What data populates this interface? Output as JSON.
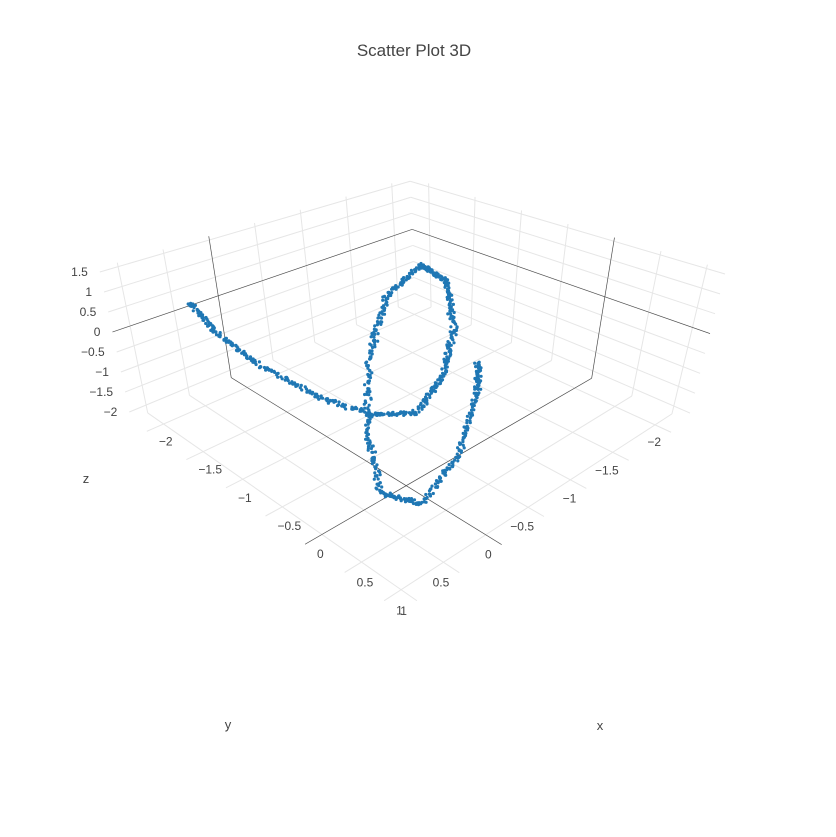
{
  "chart_data": {
    "type": "scatter3d",
    "title": "Scatter Plot 3D",
    "marker_color": "#1f77b4",
    "axes": {
      "x": {
        "label": "x",
        "range": [
          -2.2,
          1.2
        ],
        "ticks": [
          -2,
          -1.5,
          -1,
          -0.5,
          0,
          0.5,
          1
        ],
        "tick_labels": [
          "−2",
          "−1.5",
          "−1",
          "−0.5",
          "0",
          "0.5",
          "1"
        ]
      },
      "y": {
        "label": "y",
        "range": [
          -2.2,
          1.2
        ],
        "ticks": [
          -2,
          -1.5,
          -1,
          -0.5,
          0,
          0.5,
          1
        ],
        "tick_labels": [
          "−2",
          "−1.5",
          "−1",
          "−0.5",
          "0",
          "0.5",
          "1"
        ]
      },
      "z": {
        "label": "z",
        "range": [
          -2.2,
          1.6
        ],
        "ticks": [
          -2,
          -1.5,
          -1,
          -0.5,
          0,
          0.5,
          1,
          1.5
        ],
        "tick_labels": [
          "−2",
          "−1.5",
          "−1",
          "−0.5",
          "0",
          "0.5",
          "1",
          "1.5"
        ]
      }
    },
    "grid": true,
    "camera": "isometric, looking from positive x and y toward origin",
    "point_count": 1000,
    "series": [
      {
        "points_sample": [
          [
            -1.5,
            0.9,
            1.45
          ],
          [
            -1.2,
            0.95,
            1.2
          ],
          [
            -0.8,
            0.9,
            0.9
          ],
          [
            -0.3,
            0.7,
            0.5
          ],
          [
            0.0,
            0.4,
            0.1
          ],
          [
            0.1,
            0.0,
            -0.2
          ],
          [
            -0.2,
            -0.6,
            -0.3
          ],
          [
            -0.8,
            -1.3,
            -0.5
          ],
          [
            -1.5,
            -1.9,
            -0.6
          ],
          [
            -2.0,
            -2.1,
            -0.8
          ],
          [
            -1.9,
            -1.6,
            -1.1
          ],
          [
            -1.4,
            -0.9,
            -1.5
          ],
          [
            -0.7,
            -0.2,
            -1.9
          ],
          [
            0.0,
            0.3,
            -2.0
          ],
          [
            0.4,
            0.2,
            -1.9
          ],
          [
            0.3,
            -0.3,
            -1.5
          ],
          [
            -0.1,
            -0.9,
            -1.1
          ],
          [
            -0.4,
            -1.2,
            -0.9
          ]
        ]
      }
    ]
  }
}
